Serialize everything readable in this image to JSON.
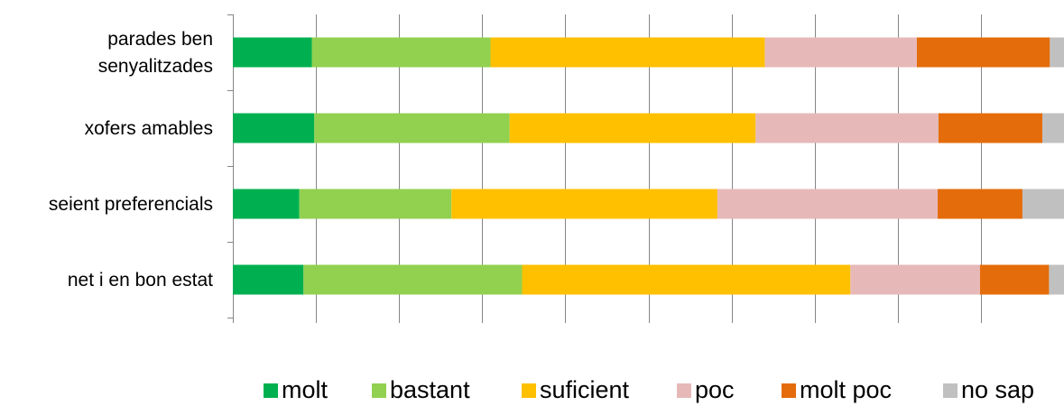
{
  "chart_data": {
    "type": "bar",
    "orientation": "horizontal",
    "stacked": "100%",
    "title": "",
    "xlabel": "",
    "ylabel": "",
    "categories": [
      "parades ben senyalitzades",
      "xofers amables",
      "seient preferencials",
      "net i en bon estat"
    ],
    "category_lines": [
      [
        "parades ben",
        "senyalitzades"
      ],
      [
        "xofers amables"
      ],
      [
        "seient preferencials"
      ],
      [
        "net i en bon estat"
      ]
    ],
    "xlim": [
      0,
      100
    ],
    "grid": true,
    "legend_position": "bottom",
    "series": [
      {
        "name": "molt",
        "color": "#00b050",
        "values": [
          9.5,
          9.8,
          8.0,
          8.5
        ]
      },
      {
        "name": "bastant",
        "color": "#92d050",
        "values": [
          21.5,
          23.5,
          18.3,
          26.3
        ]
      },
      {
        "name": "suficient",
        "color": "#ffc000",
        "values": [
          33.0,
          29.6,
          32.0,
          39.5
        ]
      },
      {
        "name": "poc",
        "color": "#e6b9b8",
        "values": [
          18.3,
          22.0,
          26.5,
          15.6
        ]
      },
      {
        "name": "molt poc",
        "color": "#e46c0a",
        "values": [
          16.0,
          12.5,
          10.2,
          8.3
        ]
      },
      {
        "name": "no sap",
        "color": "#c0c0c0",
        "values": [
          5.0,
          6.5,
          8.8,
          6.0
        ]
      }
    ]
  }
}
